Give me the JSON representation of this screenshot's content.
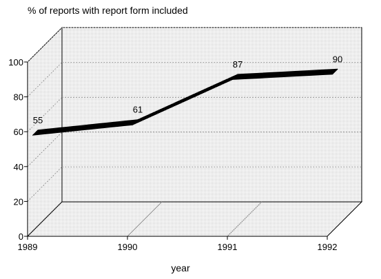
{
  "chart_data": {
    "type": "line",
    "title": "% of reports with report form included",
    "xlabel": "year",
    "ylabel": "",
    "x": [
      "1989",
      "1990",
      "1991",
      "1992"
    ],
    "series": [
      {
        "values": [
          55,
          61,
          87,
          90
        ],
        "labels": [
          "55",
          "61",
          "87",
          "90"
        ]
      }
    ],
    "ylim": [
      0,
      100
    ],
    "yticks": [
      "0",
      "20",
      "40",
      "60",
      "80",
      "100"
    ],
    "grid": true,
    "three_d": true,
    "colors": {
      "line": "#000000",
      "walls": "#dcdcdc",
      "grid": "#9a9a9a"
    }
  }
}
